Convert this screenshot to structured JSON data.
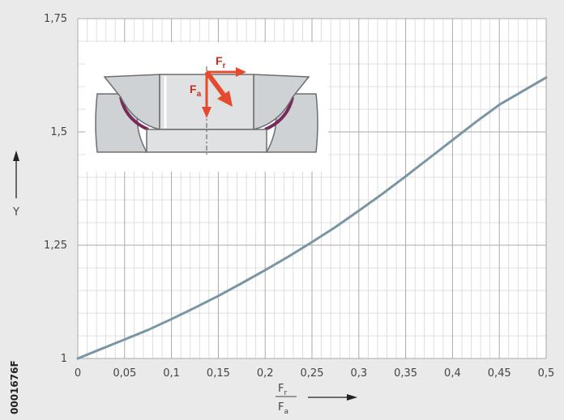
{
  "figure_code": "0001676F",
  "colors": {
    "background": "#eaeaea",
    "plot_background": "#ffffff",
    "grid_minor": "#d6d6d6",
    "grid_major": "#aaaaaa",
    "curve": "#7a96a4",
    "force_arrow": "#e64a2e",
    "bearing_body": "#cfd2d4",
    "bearing_outline": "#6b6e70",
    "sliding_layer": "#7a2a5a"
  },
  "inset": {
    "force_radial": {
      "main": "F",
      "sub": "r"
    },
    "force_axial": {
      "main": "F",
      "sub": "a"
    }
  },
  "chart_data": {
    "type": "line",
    "title": "",
    "xlabel": {
      "numerator": {
        "main": "F",
        "sub": "r"
      },
      "denominator": {
        "main": "F",
        "sub": "a"
      }
    },
    "ylabel": "Y",
    "xlim": [
      0,
      0.5
    ],
    "ylim": [
      1,
      1.75
    ],
    "x_ticks": [
      0,
      0.05,
      0.1,
      0.15,
      0.2,
      0.25,
      0.3,
      0.35,
      0.4,
      0.45,
      0.5
    ],
    "x_tick_labels": [
      "0",
      "0,05",
      "0,1",
      "0,15",
      "0,2",
      "0,25",
      "0,3",
      "0,35",
      "0,4",
      "0,45",
      "0,5"
    ],
    "y_ticks": [
      1,
      1.25,
      1.5,
      1.75
    ],
    "y_tick_labels": [
      "1",
      "1,25",
      "1,5",
      "1,75"
    ],
    "grid": true,
    "grid_minor_step_x": 0.01,
    "grid_minor_step_y": 0.05,
    "legend": "none",
    "series": [
      {
        "x": [
          0,
          0.025,
          0.05,
          0.075,
          0.1,
          0.125,
          0.15,
          0.175,
          0.2,
          0.225,
          0.25,
          0.275,
          0.3,
          0.325,
          0.35,
          0.375,
          0.4,
          0.425,
          0.45,
          0.475,
          0.5
        ],
        "y": [
          1.0,
          1.021,
          1.042,
          1.063,
          1.087,
          1.112,
          1.138,
          1.166,
          1.195,
          1.225,
          1.257,
          1.29,
          1.326,
          1.363,
          1.402,
          1.442,
          1.482,
          1.522,
          1.56,
          1.59,
          1.62
        ]
      }
    ]
  }
}
